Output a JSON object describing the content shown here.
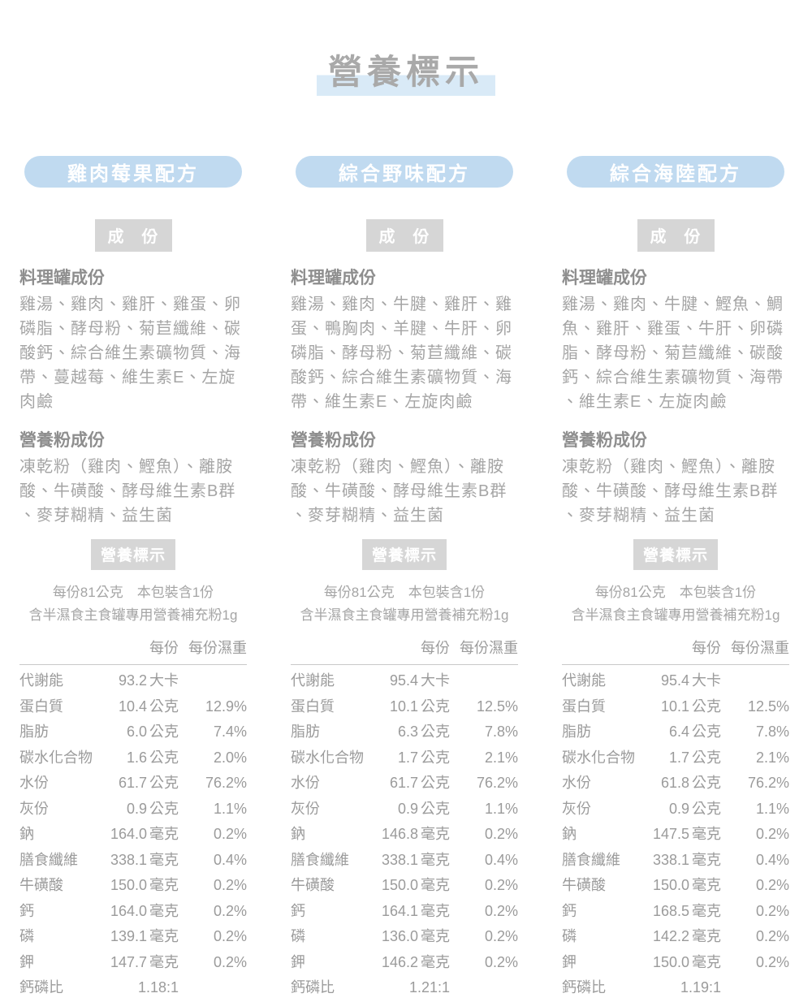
{
  "page": {
    "title": "營養標示"
  },
  "columns": [
    {
      "name": "雞肉莓果配方",
      "section_label": "成　份",
      "can_title": "料理罐成份",
      "can_text": "雞湯、雞肉、雞肝、雞蛋、卵磷脂、酵母粉、菊苣纖維、碳酸鈣、綜合維生素礦物質、海帶、蔓越莓、維生素E、左旋肉鹼",
      "powder_title": "營養粉成份",
      "powder_text": "凍乾粉（雞肉、鰹魚）、離胺酸、牛磺酸、酵母維生素B群、麥芽糊精、益生菌",
      "nutrition_label": "營養標示",
      "serving_line1": "每份81公克　本包裝含1份",
      "serving_line2": "含半濕食主食罐專用營養補充粉1g",
      "header_per": "每份",
      "header_wet": "每份濕重",
      "rows": [
        {
          "label": "代謝能",
          "value": "93.2",
          "unit": "大卡",
          "pct": ""
        },
        {
          "label": "蛋白質",
          "value": "10.4",
          "unit": "公克",
          "pct": "12.9%"
        },
        {
          "label": "脂肪",
          "value": "6.0",
          "unit": "公克",
          "pct": "7.4%"
        },
        {
          "label": "碳水化合物",
          "value": "1.6",
          "unit": "公克",
          "pct": "2.0%"
        },
        {
          "label": "水份",
          "value": "61.7",
          "unit": "公克",
          "pct": "76.2%"
        },
        {
          "label": "灰份",
          "value": "0.9",
          "unit": "公克",
          "pct": "1.1%"
        },
        {
          "label": "鈉",
          "value": "164.0",
          "unit": "毫克",
          "pct": "0.2%"
        },
        {
          "label": "膳食纖維",
          "value": "338.1",
          "unit": "毫克",
          "pct": "0.4%"
        },
        {
          "label": "牛磺酸",
          "value": "150.0",
          "unit": "毫克",
          "pct": "0.2%"
        },
        {
          "label": "鈣",
          "value": "164.0",
          "unit": "毫克",
          "pct": "0.2%"
        },
        {
          "label": "磷",
          "value": "139.1",
          "unit": "毫克",
          "pct": "0.2%"
        },
        {
          "label": "鉀",
          "value": "147.7",
          "unit": "毫克",
          "pct": "0.2%"
        },
        {
          "label": "鈣磷比",
          "value": "1.18:1",
          "unit": "",
          "pct": ""
        }
      ]
    },
    {
      "name": "綜合野味配方",
      "section_label": "成　份",
      "can_title": "料理罐成份",
      "can_text": "雞湯、雞肉、牛腱、雞肝、雞蛋、鴨胸肉、羊腱、牛肝、卵磷脂、酵母粉、菊苣纖維、碳酸鈣、綜合維生素礦物質、海帶、維生素E、左旋肉鹼",
      "powder_title": "營養粉成份",
      "powder_text": "凍乾粉（雞肉、鰹魚）、離胺酸、牛磺酸、酵母維生素B群、麥芽糊精、益生菌",
      "nutrition_label": "營養標示",
      "serving_line1": "每份81公克　本包裝含1份",
      "serving_line2": "含半濕食主食罐專用營養補充粉1g",
      "header_per": "每份",
      "header_wet": "每份濕重",
      "rows": [
        {
          "label": "代謝能",
          "value": "95.4",
          "unit": "大卡",
          "pct": ""
        },
        {
          "label": "蛋白質",
          "value": "10.1",
          "unit": "公克",
          "pct": "12.5%"
        },
        {
          "label": "脂肪",
          "value": "6.3",
          "unit": "公克",
          "pct": "7.8%"
        },
        {
          "label": "碳水化合物",
          "value": "1.7",
          "unit": "公克",
          "pct": "2.1%"
        },
        {
          "label": "水份",
          "value": "61.7",
          "unit": "公克",
          "pct": "76.2%"
        },
        {
          "label": "灰份",
          "value": "0.9",
          "unit": "公克",
          "pct": "1.1%"
        },
        {
          "label": "鈉",
          "value": "146.8",
          "unit": "毫克",
          "pct": "0.2%"
        },
        {
          "label": "膳食纖維",
          "value": "338.1",
          "unit": "毫克",
          "pct": "0.4%"
        },
        {
          "label": "牛磺酸",
          "value": "150.0",
          "unit": "毫克",
          "pct": "0.2%"
        },
        {
          "label": "鈣",
          "value": "164.1",
          "unit": "毫克",
          "pct": "0.2%"
        },
        {
          "label": "磷",
          "value": "136.0",
          "unit": "毫克",
          "pct": "0.2%"
        },
        {
          "label": "鉀",
          "value": "146.2",
          "unit": "毫克",
          "pct": "0.2%"
        },
        {
          "label": "鈣磷比",
          "value": "1.21:1",
          "unit": "",
          "pct": ""
        }
      ]
    },
    {
      "name": "綜合海陸配方",
      "section_label": "成　份",
      "can_title": "料理罐成份",
      "can_text": "雞湯、雞肉、牛腱、鰹魚、鯛魚、雞肝、雞蛋、牛肝、卵磷脂、酵母粉、菊苣纖維、碳酸鈣、綜合維生素礦物質、海帶、維生素E、左旋肉鹼",
      "powder_title": "營養粉成份",
      "powder_text": "凍乾粉（雞肉、鰹魚）、離胺酸、牛磺酸、酵母維生素B群、麥芽糊精、益生菌",
      "nutrition_label": "營養標示",
      "serving_line1": "每份81公克　本包裝含1份",
      "serving_line2": "含半濕食主食罐專用營養補充粉1g",
      "header_per": "每份",
      "header_wet": "每份濕重",
      "rows": [
        {
          "label": "代謝能",
          "value": "95.4",
          "unit": "大卡",
          "pct": ""
        },
        {
          "label": "蛋白質",
          "value": "10.1",
          "unit": "公克",
          "pct": "12.5%"
        },
        {
          "label": "脂肪",
          "value": "6.4",
          "unit": "公克",
          "pct": "7.8%"
        },
        {
          "label": "碳水化合物",
          "value": "1.7",
          "unit": "公克",
          "pct": "2.1%"
        },
        {
          "label": "水份",
          "value": "61.8",
          "unit": "公克",
          "pct": "76.2%"
        },
        {
          "label": "灰份",
          "value": "0.9",
          "unit": "公克",
          "pct": "1.1%"
        },
        {
          "label": "鈉",
          "value": "147.5",
          "unit": "毫克",
          "pct": "0.2%"
        },
        {
          "label": "膳食纖維",
          "value": "338.1",
          "unit": "毫克",
          "pct": "0.4%"
        },
        {
          "label": "牛磺酸",
          "value": "150.0",
          "unit": "毫克",
          "pct": "0.2%"
        },
        {
          "label": "鈣",
          "value": "168.5",
          "unit": "毫克",
          "pct": "0.2%"
        },
        {
          "label": "磷",
          "value": "142.2",
          "unit": "毫克",
          "pct": "0.2%"
        },
        {
          "label": "鉀",
          "value": "150.0",
          "unit": "毫克",
          "pct": "0.2%"
        },
        {
          "label": "鈣磷比",
          "value": "1.19:1",
          "unit": "",
          "pct": ""
        }
      ]
    }
  ],
  "colors": {
    "pill_blue": "#c0daf0",
    "title_highlight": "#d9eaf7",
    "section_gray": "#d6d6d6",
    "text_gray": "#a5a5a5"
  }
}
